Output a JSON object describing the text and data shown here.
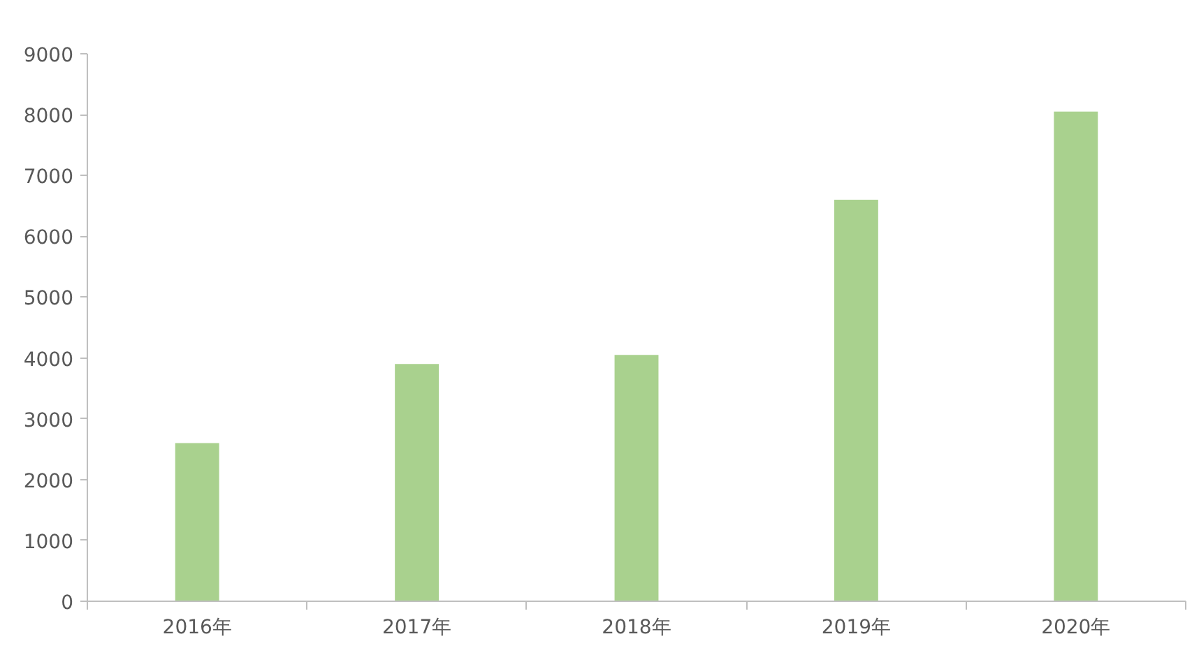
{
  "chart_data": {
    "type": "bar",
    "categories": [
      "2016年",
      "2017年",
      "2018年",
      "2019年",
      "2020年"
    ],
    "values": [
      2600,
      3900,
      4050,
      6600,
      8050
    ],
    "color": "#a9d18e",
    "ylim": [
      0,
      9000
    ],
    "yticks": [
      0,
      1000,
      2000,
      3000,
      4000,
      5000,
      6000,
      7000,
      8000,
      9000
    ],
    "grid": false
  }
}
